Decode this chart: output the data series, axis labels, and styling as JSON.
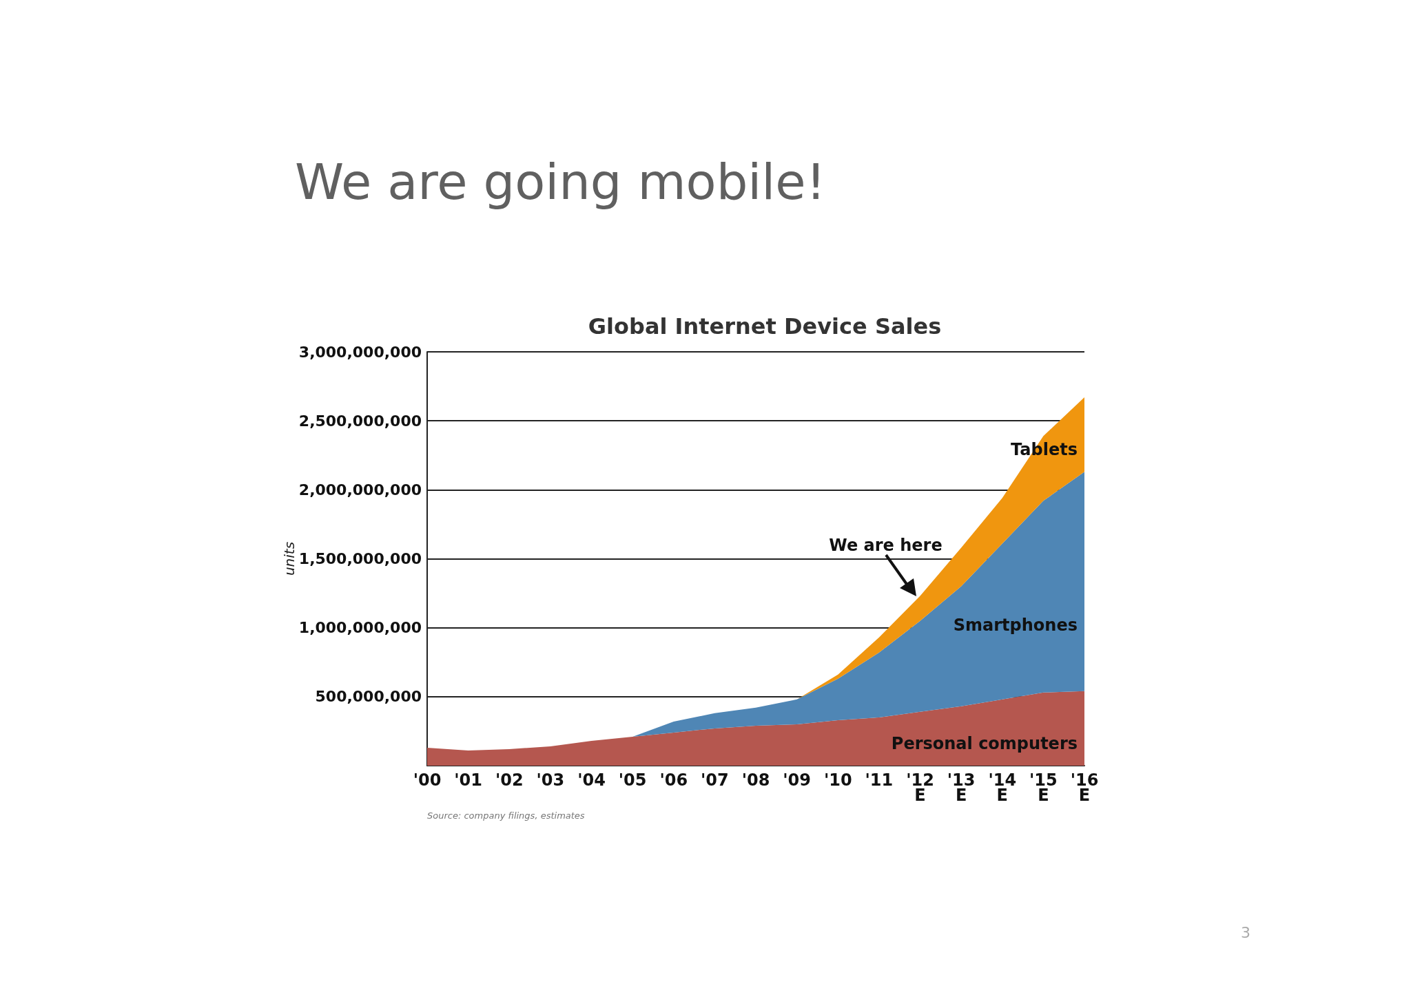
{
  "chart_data": {
    "type": "area",
    "title": "We are going mobile!",
    "subtitle": "Global Internet Device Sales",
    "ylabel": "units",
    "categories": [
      "'00",
      "'01",
      "'02",
      "'03",
      "'04",
      "'05",
      "'06",
      "'07",
      "'08",
      "'09",
      "'10",
      "'11",
      "'12\nE",
      "'13\nE",
      "'14\nE",
      "'15\nE",
      "'16\nE"
    ],
    "stacked": true,
    "series": [
      {
        "name": "Personal computers",
        "color": "#b5574f",
        "values": [
          130000000,
          110000000,
          120000000,
          140000000,
          180000000,
          210000000,
          240000000,
          270000000,
          290000000,
          300000000,
          330000000,
          350000000,
          390000000,
          430000000,
          480000000,
          530000000,
          540000000
        ]
      },
      {
        "name": "Smartphones",
        "color": "#4f86b5",
        "values": [
          0,
          0,
          0,
          0,
          0,
          0,
          80000000,
          110000000,
          130000000,
          180000000,
          300000000,
          470000000,
          660000000,
          870000000,
          1130000000,
          1390000000,
          1590000000
        ]
      },
      {
        "name": "Tablets",
        "color": "#f0960f",
        "values": [
          0,
          0,
          0,
          0,
          0,
          0,
          0,
          0,
          0,
          0,
          30000000,
          110000000,
          180000000,
          280000000,
          330000000,
          470000000,
          540000000
        ]
      }
    ],
    "ylim": [
      0,
      3000000000
    ],
    "yticks": [
      {
        "value": 0,
        "label": null
      },
      {
        "value": 500000000,
        "label": "500,000,000"
      },
      {
        "value": 1000000000,
        "label": "1,000,000,000"
      },
      {
        "value": 1500000000,
        "label": "1,500,000,000"
      },
      {
        "value": 2000000000,
        "label": "2,000,000,000"
      },
      {
        "value": 2500000000,
        "label": "2,500,000,000"
      },
      {
        "value": 3000000000,
        "label": "3,000,000,000"
      }
    ],
    "grid": "y",
    "legend": false,
    "annotations": [
      "Source: company filings, estimates",
      {
        "text": "We are here",
        "x": "'12\nE",
        "y": 1230000000
      },
      "3"
    ]
  }
}
